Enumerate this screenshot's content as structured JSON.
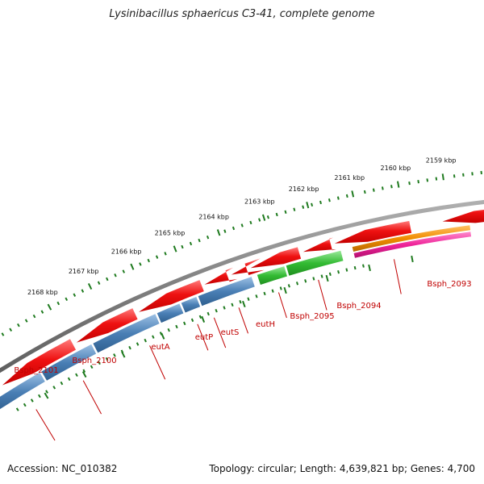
{
  "title": "Lysinibacillus sphaericus C3-41, complete genome",
  "footer": {
    "accession": "Accession: NC_010382",
    "stats": "Topology: circular; Length: 4,639,821 bp; Genes: 4,700"
  },
  "coordinate_ticks": [
    {
      "label": "2168 kbp"
    },
    {
      "label": "2167 kbp"
    },
    {
      "label": "2166 kbp"
    },
    {
      "label": "2165 kbp"
    },
    {
      "label": "2164 kbp"
    },
    {
      "label": "2163 kbp"
    },
    {
      "label": "2162 kbp"
    },
    {
      "label": "2161 kbp"
    },
    {
      "label": "2160 kbp"
    },
    {
      "label": "2159 kbp"
    }
  ],
  "genes": [
    {
      "name": "Bsph_2101"
    },
    {
      "name": "Bsph_2100"
    },
    {
      "name": "eutA"
    },
    {
      "name": "eutP"
    },
    {
      "name": "eutS"
    },
    {
      "name": "eutH"
    },
    {
      "name": "Bsph_2095"
    },
    {
      "name": "Bsph_2094"
    },
    {
      "name": "Bsph_2093"
    }
  ],
  "colors": {
    "backbone": "#808080",
    "cds_arrow": "#ee1111",
    "track_blue": "#4a7fb5",
    "track_green": "#33bb33",
    "track_orange": "#f08c00",
    "track_magenta": "#ee2299",
    "tick": "#1e7a1e",
    "label": "#c00000"
  }
}
